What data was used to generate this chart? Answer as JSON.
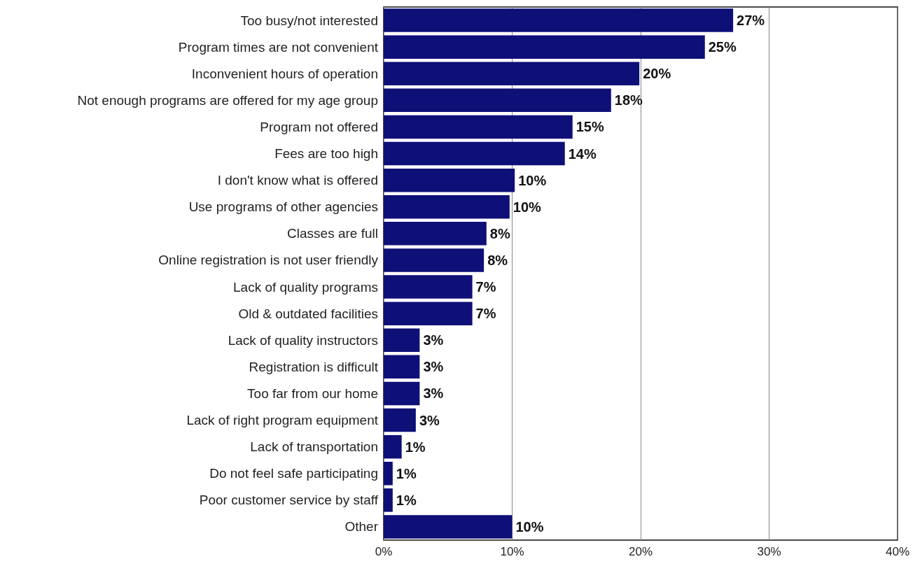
{
  "chart_data": {
    "type": "bar",
    "orientation": "horizontal",
    "categories": [
      "Too busy/not interested",
      "Program times are not convenient",
      "Inconvenient hours of operation",
      "Not enough programs are offered for my age group",
      "Program not offered",
      "Fees are too high",
      "I don't know what is offered",
      "Use programs of other agencies",
      "Classes are full",
      "Online registration is not user friendly",
      "Lack of quality programs",
      "Old & outdated facilities",
      "Lack of quality instructors",
      "Registration is difficult",
      "Too far from our home",
      "Lack of right program equipment",
      "Lack of transportation",
      "Do not feel safe participating",
      "Poor customer service by staff",
      "Other"
    ],
    "values": [
      27.2,
      25.0,
      19.9,
      17.7,
      14.7,
      14.1,
      10.2,
      9.8,
      8.0,
      7.8,
      6.9,
      6.9,
      2.8,
      2.8,
      2.8,
      2.5,
      1.4,
      0.7,
      0.7,
      10.0
    ],
    "value_labels": [
      "27%",
      "25%",
      "20%",
      "18%",
      "15%",
      "14%",
      "10%",
      "10%",
      "8%",
      "8%",
      "7%",
      "7%",
      "3%",
      "3%",
      "3%",
      "3%",
      "1%",
      "1%",
      "1%",
      "10%"
    ],
    "color": "#0f0f78",
    "xlim": [
      0,
      40
    ],
    "xticks": [
      {
        "value": 0,
        "label": "0%"
      },
      {
        "value": 10,
        "label": "10%"
      },
      {
        "value": 20,
        "label": "20%"
      },
      {
        "value": 30,
        "label": "30%"
      },
      {
        "value": 40,
        "label": "40%"
      }
    ],
    "grid": "x"
  }
}
